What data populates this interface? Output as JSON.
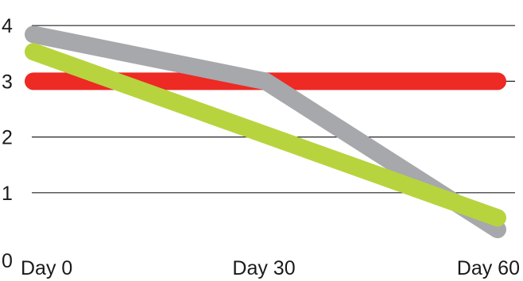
{
  "chart_data": {
    "type": "line",
    "title": "",
    "xlabel": "",
    "ylabel": "",
    "categories": [
      "Day 0",
      "Day 30",
      "Day 60"
    ],
    "x": [
      0,
      30,
      60
    ],
    "ylim": [
      0,
      4.4
    ],
    "yticks": [
      0,
      1,
      2,
      3,
      4
    ],
    "grid": true,
    "legend": "none",
    "series": [
      {
        "color": "#ed2a24",
        "x": [
          0,
          60
        ],
        "values": [
          3.0,
          3.0
        ]
      },
      {
        "color": "#a6a8ac",
        "x": [
          0,
          30,
          60
        ],
        "values": [
          3.84,
          3.0,
          0.34
        ]
      },
      {
        "color": "#b7d43e",
        "x": [
          0,
          60
        ],
        "values": [
          3.53,
          0.55
        ]
      }
    ]
  }
}
